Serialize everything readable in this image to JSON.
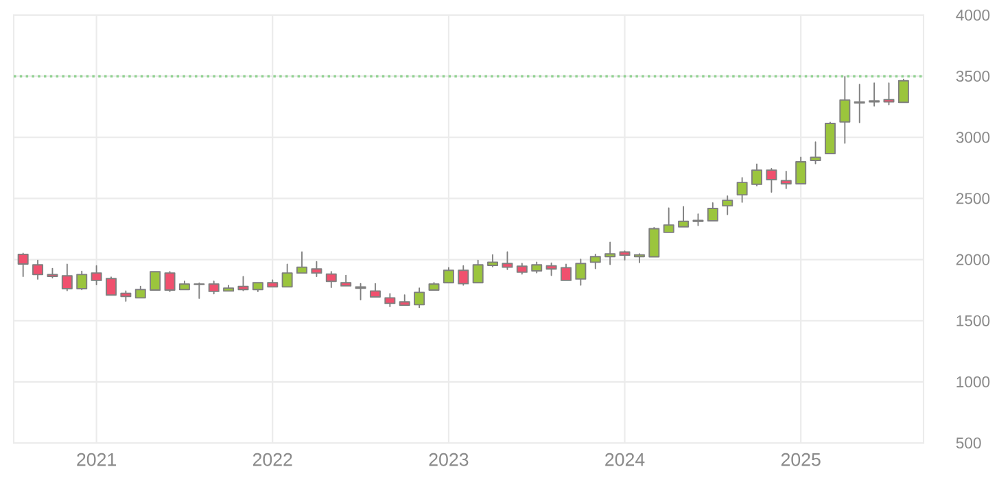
{
  "chart_data": {
    "type": "candlestick",
    "x": [
      "2020-08",
      "2020-09",
      "2020-10",
      "2020-11",
      "2020-12",
      "2021-01",
      "2021-02",
      "2021-03",
      "2021-04",
      "2021-05",
      "2021-06",
      "2021-07",
      "2021-08",
      "2021-09",
      "2021-10",
      "2021-11",
      "2021-12",
      "2022-01",
      "2022-02",
      "2022-03",
      "2022-04",
      "2022-05",
      "2022-06",
      "2022-07",
      "2022-08",
      "2022-09",
      "2022-10",
      "2022-11",
      "2022-12",
      "2023-01",
      "2023-02",
      "2023-03",
      "2023-04",
      "2023-05",
      "2023-06",
      "2023-07",
      "2023-08",
      "2023-09",
      "2023-10",
      "2023-11",
      "2023-12",
      "2024-01",
      "2024-02",
      "2024-03",
      "2024-04",
      "2024-05",
      "2024-06",
      "2024-07",
      "2024-08",
      "2024-09",
      "2024-10",
      "2024-11",
      "2024-12",
      "2025-01",
      "2025-02",
      "2025-03",
      "2025-04",
      "2025-05",
      "2025-06",
      "2025-07",
      "2025-08"
    ],
    "ohlc": [
      [
        2043,
        2051,
        1863,
        1964
      ],
      [
        1957,
        1994,
        1841,
        1878
      ],
      [
        1878,
        1927,
        1852,
        1863
      ],
      [
        1867,
        1961,
        1747,
        1762
      ],
      [
        1762,
        1904,
        1755,
        1878
      ],
      [
        1890,
        1949,
        1796,
        1830
      ],
      [
        1845,
        1856,
        1710,
        1710
      ],
      [
        1725,
        1743,
        1661,
        1699
      ],
      [
        1687,
        1781,
        1687,
        1755
      ],
      [
        1751,
        1901,
        1751,
        1901
      ],
      [
        1890,
        1901,
        1740,
        1751
      ],
      [
        1755,
        1822,
        1755,
        1800
      ],
      [
        1800,
        1807,
        1684,
        1797
      ],
      [
        1800,
        1822,
        1721,
        1740
      ],
      [
        1743,
        1788,
        1743,
        1766
      ],
      [
        1781,
        1860,
        1747,
        1755
      ],
      [
        1755,
        1811,
        1740,
        1811
      ],
      [
        1811,
        1833,
        1777,
        1777
      ],
      [
        1777,
        1961,
        1777,
        1890
      ],
      [
        1890,
        2062,
        1890,
        1938
      ],
      [
        1923,
        1983,
        1863,
        1890
      ],
      [
        1882,
        1901,
        1773,
        1822
      ],
      [
        1811,
        1871,
        1785,
        1785
      ],
      [
        1777,
        1803,
        1672,
        1766
      ],
      [
        1743,
        1803,
        1695,
        1695
      ],
      [
        1687,
        1721,
        1616,
        1642
      ],
      [
        1654,
        1710,
        1627,
        1627
      ],
      [
        1631,
        1766,
        1609,
        1732
      ],
      [
        1751,
        1811,
        1751,
        1800
      ],
      [
        1811,
        1934,
        1811,
        1912
      ],
      [
        1912,
        1949,
        1792,
        1803
      ],
      [
        1811,
        1994,
        1811,
        1957
      ],
      [
        1953,
        2039,
        1942,
        1979
      ],
      [
        1968,
        2062,
        1920,
        1938
      ],
      [
        1946,
        1968,
        1882,
        1897
      ],
      [
        1908,
        1979,
        1893,
        1957
      ],
      [
        1949,
        1972,
        1871,
        1923
      ],
      [
        1934,
        1961,
        1830,
        1830
      ],
      [
        1841,
        2002,
        1792,
        1968
      ],
      [
        1979,
        2043,
        1927,
        2024
      ],
      [
        2024,
        2141,
        1961,
        2047
      ],
      [
        2062,
        2069,
        1998,
        2036
      ],
      [
        2024,
        2047,
        1976,
        2039
      ],
      [
        2023,
        2262,
        2023,
        2253
      ],
      [
        2223,
        2421,
        2223,
        2283
      ],
      [
        2268,
        2433,
        2268,
        2313
      ],
      [
        2313,
        2373,
        2279,
        2321
      ],
      [
        2317,
        2463,
        2317,
        2418
      ],
      [
        2440,
        2519,
        2369,
        2485
      ],
      [
        2530,
        2669,
        2470,
        2631
      ],
      [
        2616,
        2781,
        2605,
        2732
      ],
      [
        2732,
        2744,
        2553,
        2654
      ],
      [
        2646,
        2721,
        2582,
        2620
      ],
      [
        2620,
        2837,
        2620,
        2800
      ],
      [
        2811,
        2961,
        2785,
        2837
      ],
      [
        2867,
        3122,
        2867,
        3114
      ],
      [
        3126,
        3495,
        2953,
        3305
      ],
      [
        3282,
        3433,
        3122,
        3290
      ],
      [
        3290,
        3444,
        3257,
        3298
      ],
      [
        3309,
        3444,
        3268,
        3290
      ],
      [
        3286,
        3474,
        3286,
        3463
      ]
    ],
    "xlim": [
      "2020-07-12",
      "2025-09-12"
    ],
    "xticks": [
      "2021",
      "2022",
      "2023",
      "2024",
      "2025"
    ],
    "ylim": [
      500,
      4000
    ],
    "yticks": [
      500,
      1000,
      1500,
      2000,
      2500,
      3000,
      3500,
      4000
    ],
    "grid": true,
    "ref_lines": [
      {
        "axis": "y",
        "value": 3500,
        "color": "#8fd18f",
        "line_style": "dotted"
      }
    ]
  }
}
